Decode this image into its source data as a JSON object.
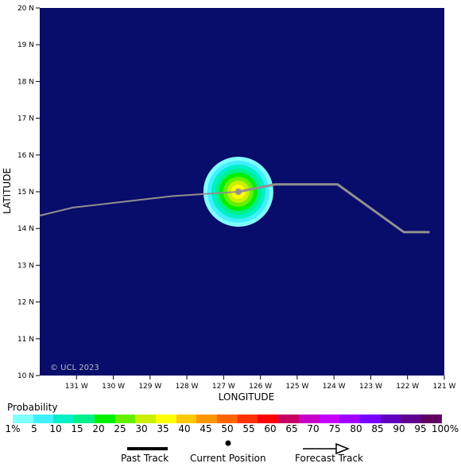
{
  "map": {
    "y_axis_title": "LATITUDE",
    "x_axis_title": "LONGITUDE",
    "lat_ticks": [
      "20 N",
      "19 N",
      "18 N",
      "17 N",
      "16 N",
      "15 N",
      "14 N",
      "13 N",
      "12 N",
      "11 N",
      "10 N"
    ],
    "lon_ticks": [
      "131 W",
      "130 W",
      "129 W",
      "128 W",
      "127 W",
      "126 W",
      "125 W",
      "124 W",
      "123 W",
      "122 W",
      "121 W"
    ],
    "watermark": "© UCL 2023",
    "background_color": "#080c6a",
    "current_position": {
      "lon_w": 126.6,
      "lat_n": 15.0
    },
    "past_track": [
      {
        "lon_w": 132.0,
        "lat_n": 14.35
      },
      {
        "lon_w": 131.1,
        "lat_n": 14.57
      },
      {
        "lon_w": 128.4,
        "lat_n": 14.88
      },
      {
        "lon_w": 126.6,
        "lat_n": 15.0
      }
    ],
    "forecast_track": [
      {
        "lon_w": 126.6,
        "lat_n": 15.0
      },
      {
        "lon_w": 125.6,
        "lat_n": 15.2
      },
      {
        "lon_w": 123.9,
        "lat_n": 15.2
      },
      {
        "lon_w": 122.1,
        "lat_n": 13.9
      },
      {
        "lon_w": 121.4,
        "lat_n": 13.9
      }
    ],
    "probability_field": {
      "center_lon_w": 126.6,
      "center_lat_n": 15.0,
      "peak_percent": 40
    }
  },
  "legend": {
    "title": "Probability",
    "colors": [
      "#80ffff",
      "#40f0ff",
      "#00f0c8",
      "#00f08c",
      "#00f000",
      "#64f000",
      "#c8f000",
      "#ffff00",
      "#ffc800",
      "#ff9600",
      "#ff6400",
      "#ff3200",
      "#ff0000",
      "#c80064",
      "#c800c8",
      "#c800ff",
      "#a000ff",
      "#7800ff",
      "#6000c0",
      "#600090",
      "#600060"
    ],
    "labels": [
      "1%",
      "5",
      "10",
      "15",
      "20",
      "25",
      "30",
      "35",
      "40",
      "45",
      "50",
      "55",
      "60",
      "65",
      "70",
      "75",
      "80",
      "85",
      "90",
      "95",
      "100%"
    ]
  },
  "key": {
    "past_track_label": "Past Track",
    "current_position_label": "Current Position",
    "forecast_track_label": "Forecast Track"
  }
}
